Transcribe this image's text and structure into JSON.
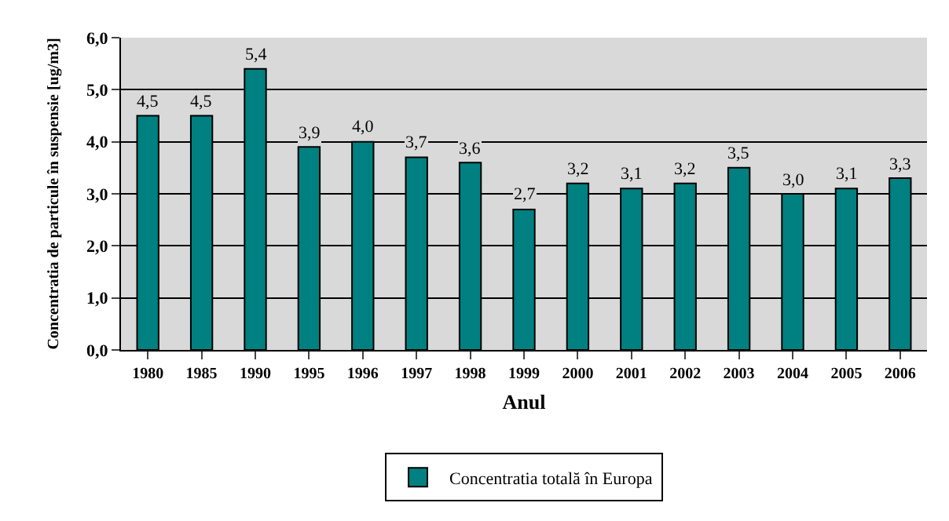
{
  "chart_data": {
    "type": "bar",
    "xlabel": "Anul",
    "ylabel": "Concentratia de particule în suspensie [ug/m3]",
    "categories": [
      "1980",
      "1985",
      "1990",
      "1995",
      "1996",
      "1997",
      "1998",
      "1999",
      "2000",
      "2001",
      "2002",
      "2003",
      "2004",
      "2005",
      "2006"
    ],
    "series": [
      {
        "name": "Concentratia totală în Europa",
        "color": "#008080",
        "values": [
          4.5,
          4.5,
          5.4,
          3.9,
          4.0,
          3.7,
          3.6,
          2.7,
          3.2,
          3.1,
          3.2,
          3.5,
          3.0,
          3.1,
          3.3
        ],
        "value_labels": [
          "4,5",
          "4,5",
          "5,4",
          "3,9",
          "4,0",
          "3,7",
          "3,6",
          "2,7",
          "3,2",
          "3,1",
          "3,2",
          "3,5",
          "3,0",
          "3,1",
          "3,3"
        ]
      }
    ],
    "ylim": [
      0,
      6
    ],
    "yticks": [
      {
        "value": 0,
        "label": "0,0"
      },
      {
        "value": 1,
        "label": "1,0"
      },
      {
        "value": 2,
        "label": "2,0"
      },
      {
        "value": 3,
        "label": "3,0"
      },
      {
        "value": 4,
        "label": "4,0"
      },
      {
        "value": 5,
        "label": "5,0"
      },
      {
        "value": 6,
        "label": "6,0"
      }
    ],
    "grid": "y",
    "legend": "bottom"
  }
}
